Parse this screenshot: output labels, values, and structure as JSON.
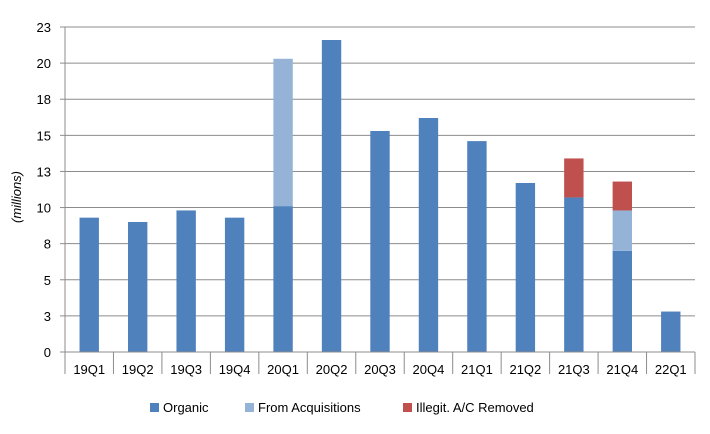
{
  "chart_data": {
    "type": "bar",
    "stacked": true,
    "categories": [
      "19Q1",
      "19Q2",
      "19Q3",
      "19Q4",
      "20Q1",
      "20Q2",
      "20Q3",
      "20Q4",
      "21Q1",
      "21Q2",
      "21Q3",
      "21Q4",
      "22Q1"
    ],
    "series": [
      {
        "name": "Organic",
        "color": "#4f81bd",
        "values": [
          9.3,
          9.0,
          9.8,
          9.3,
          10.1,
          21.6,
          15.3,
          16.2,
          14.6,
          11.7,
          10.7,
          7.0,
          2.8
        ]
      },
      {
        "name": "From Acquisitions",
        "color": "#95b3d7",
        "values": [
          0,
          0,
          0,
          0,
          10.2,
          0,
          0,
          0,
          0,
          0,
          0,
          2.8,
          0
        ]
      },
      {
        "name": "Illegit. A/C Removed",
        "color": "#c0504d",
        "values": [
          0,
          0,
          0,
          0,
          0,
          0,
          0,
          0,
          0,
          0,
          2.7,
          2.0,
          0
        ]
      }
    ],
    "y_ticks": [
      "0",
      "3",
      "5",
      "8",
      "10",
      "13",
      "15",
      "18",
      "20",
      "23"
    ],
    "ylim": [
      0,
      22.5
    ],
    "ylabel": "(millions)",
    "xlabel": "",
    "title": "",
    "grid": true,
    "legend_position": "bottom"
  }
}
